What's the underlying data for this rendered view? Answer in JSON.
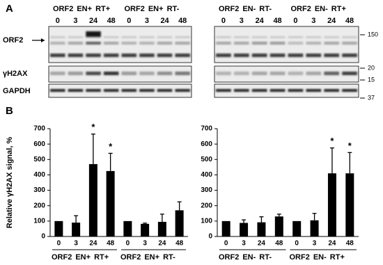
{
  "panel_a": {
    "label": "A",
    "left_groups": [
      [
        {
          "text": "ORF2",
          "color": "#000000"
        },
        {
          "text": "EN+",
          "color": "#2a8ad4"
        },
        {
          "text": "RT+",
          "color": "#2a8ad4"
        }
      ],
      [
        {
          "text": "ORF2",
          "color": "#000000"
        },
        {
          "text": "EN+",
          "color": "#2a8ad4"
        },
        {
          "text": "RT-",
          "color": "#000000"
        }
      ]
    ],
    "right_groups": [
      [
        {
          "text": "ORF2",
          "color": "#000000"
        },
        {
          "text": "EN-",
          "color": "#000000"
        },
        {
          "text": "RT-",
          "color": "#000000"
        }
      ],
      [
        {
          "text": "ORF2",
          "color": "#000000"
        },
        {
          "text": "EN-",
          "color": "#000000"
        },
        {
          "text": "RT+",
          "color": "#2a8ad4"
        }
      ]
    ],
    "lanes": [
      "0",
      "3",
      "24",
      "48"
    ],
    "rows": [
      "ORF2",
      "γH2AX",
      "GAPDH"
    ],
    "markers": [
      "150",
      "20",
      "15",
      "37"
    ]
  },
  "panel_b": {
    "label": "B"
  },
  "chart_data": [
    {
      "type": "bar",
      "ylabel": "Relative γH2AX signal, %",
      "color": "#000000",
      "categories": [
        "0",
        "3",
        "24",
        "48",
        "0",
        "3",
        "24",
        "48"
      ],
      "values": [
        100,
        90,
        470,
        425,
        100,
        82,
        95,
        170
      ],
      "errors": [
        0,
        45,
        195,
        115,
        0,
        5,
        50,
        55
      ],
      "significance": [
        null,
        null,
        "*",
        "*",
        null,
        null,
        null,
        null
      ],
      "groups": [
        [
          {
            "text": "ORF2",
            "color": "#000000"
          },
          {
            "text": "EN+",
            "color": "#2a8ad4"
          },
          {
            "text": "RT+",
            "color": "#2a8ad4"
          }
        ],
        [
          {
            "text": "ORF2",
            "color": "#000000"
          },
          {
            "text": "EN+",
            "color": "#2a8ad4"
          },
          {
            "text": "RT-",
            "color": "#000000"
          }
        ]
      ],
      "ylim": [
        0,
        700
      ],
      "yticks": [
        0,
        100,
        200,
        300,
        400,
        500,
        600,
        700
      ]
    },
    {
      "type": "bar",
      "color": "#000000",
      "categories": [
        "0",
        "3",
        "24",
        "48",
        "0",
        "3",
        "24",
        "48"
      ],
      "values": [
        100,
        88,
        92,
        130,
        100,
        105,
        410,
        410
      ],
      "errors": [
        0,
        20,
        36,
        15,
        0,
        45,
        165,
        135
      ],
      "significance": [
        null,
        null,
        null,
        null,
        null,
        null,
        "*",
        "*"
      ],
      "groups": [
        [
          {
            "text": "ORF2",
            "color": "#000000"
          },
          {
            "text": "EN-",
            "color": "#000000"
          },
          {
            "text": "RT-",
            "color": "#000000"
          }
        ],
        [
          {
            "text": "ORF2",
            "color": "#000000"
          },
          {
            "text": "EN-",
            "color": "#000000"
          },
          {
            "text": "RT+",
            "color": "#2a8ad4"
          }
        ]
      ],
      "ylim": [
        0,
        700
      ],
      "yticks": [
        0,
        100,
        200,
        300,
        400,
        500,
        600,
        700
      ]
    }
  ]
}
